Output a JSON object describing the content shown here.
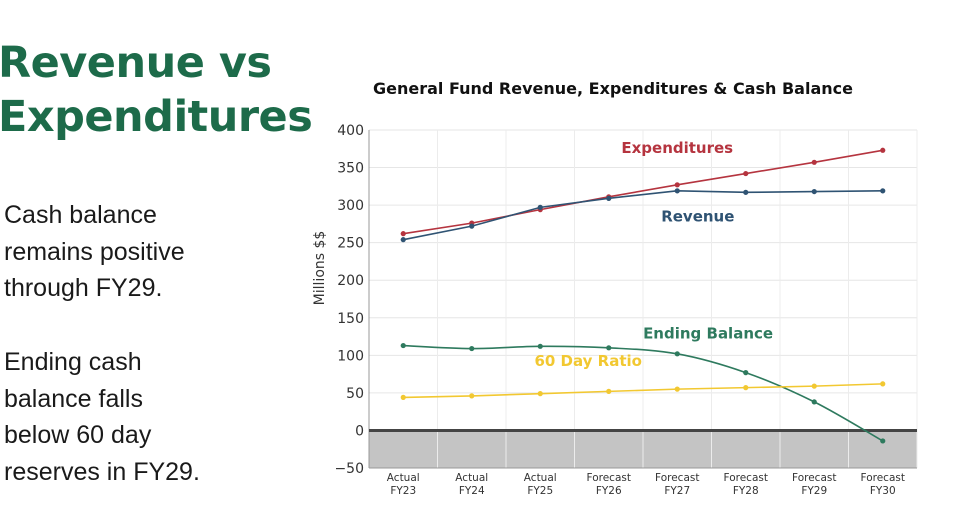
{
  "slide": {
    "title_lines": [
      "Revenue vs",
      "Expenditures"
    ],
    "para1_lines": [
      "Cash balance",
      "remains positive",
      "through FY29."
    ],
    "para2_lines": [
      "Ending cash",
      "balance falls",
      "below 60 day",
      "reserves in FY29."
    ]
  },
  "colors": {
    "title": "#1d6b4a",
    "expenditures": "#b5343f",
    "revenue": "#2f5373",
    "ending_balance": "#2e7a5e",
    "ratio": "#f2c831",
    "negative_zone": "#c4c4c4"
  },
  "chart_data": {
    "type": "line",
    "title": "General Fund Revenue, Expenditures & Cash Balance",
    "xlabel": "",
    "ylabel": "Millions $$",
    "ylim": [
      -50,
      400
    ],
    "yticks": [
      -50,
      0,
      50,
      100,
      150,
      200,
      250,
      300,
      350,
      400
    ],
    "categories": [
      [
        "Actual",
        "FY23"
      ],
      [
        "Actual",
        "FY24"
      ],
      [
        "Actual",
        "FY25"
      ],
      [
        "Forecast",
        "FY26"
      ],
      [
        "Forecast",
        "FY27"
      ],
      [
        "Forecast",
        "FY28"
      ],
      [
        "Forecast",
        "FY29"
      ],
      [
        "Forecast",
        "FY30"
      ]
    ],
    "grid": true,
    "series": [
      {
        "name": "Expenditures",
        "key": "expenditures",
        "values": [
          262,
          276,
          294,
          311,
          327,
          342,
          357,
          373
        ],
        "smooth": false
      },
      {
        "name": "Revenue",
        "key": "revenue",
        "values": [
          254,
          272,
          297,
          309,
          319,
          317,
          318,
          319
        ],
        "smooth": false
      },
      {
        "name": "Ending Balance",
        "key": "ending_balance",
        "values": [
          113,
          109,
          112,
          110,
          102,
          77,
          38,
          -14
        ],
        "smooth": true
      },
      {
        "name": "60 Day Ratio",
        "key": "ratio",
        "values": [
          44,
          46,
          49,
          52,
          55,
          57,
          59,
          62
        ],
        "smooth": false
      }
    ]
  }
}
